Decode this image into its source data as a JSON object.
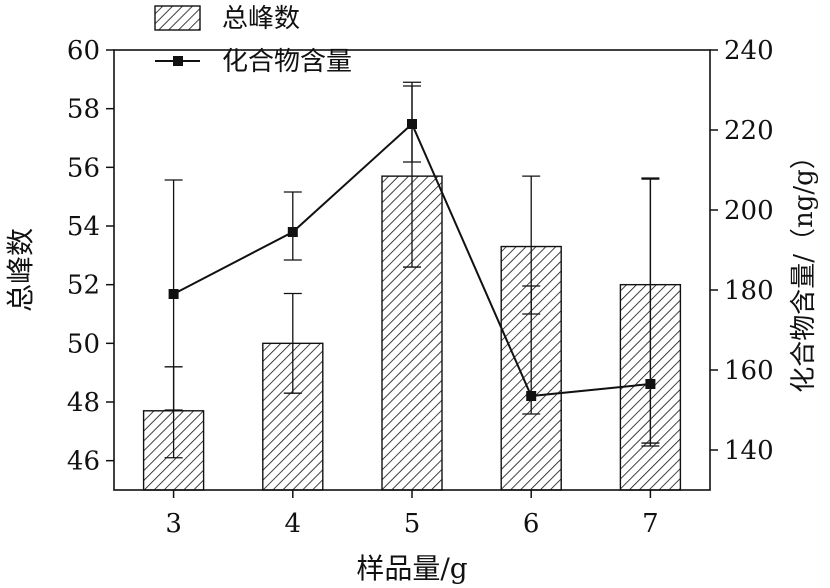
{
  "chart_data": {
    "type": "bar+line",
    "categories": [
      "3",
      "4",
      "5",
      "6",
      "7"
    ],
    "xlabel": "样品量/g",
    "left_axis": {
      "label": "总峰数",
      "ylim": [
        45,
        60
      ],
      "ticks": [
        46,
        48,
        50,
        52,
        54,
        56,
        58,
        60
      ]
    },
    "right_axis": {
      "label": "化合物含量/（ng/g）",
      "ylim": [
        130,
        240
      ],
      "ticks": [
        140,
        160,
        180,
        200,
        220,
        240
      ]
    },
    "series": [
      {
        "name": "总峰数",
        "kind": "bar",
        "axis": "left",
        "pattern": "hatched",
        "values": [
          47.7,
          50.0,
          55.7,
          53.3,
          52.0
        ],
        "error_lower": [
          46.1,
          48.3,
          52.6,
          51.0,
          46.6
        ],
        "error_upper": [
          49.2,
          51.7,
          58.9,
          55.7,
          55.6
        ]
      },
      {
        "name": "化合物含量",
        "kind": "line",
        "axis": "right",
        "marker": "square",
        "values": [
          179,
          194.5,
          221.5,
          153.5,
          156.5
        ],
        "error_lower": [
          150,
          187.5,
          212,
          149,
          141
        ],
        "error_upper": [
          207.5,
          204.5,
          231,
          181,
          208
        ]
      }
    ],
    "legend": {
      "position": "top-left-outside"
    },
    "grid": false
  }
}
